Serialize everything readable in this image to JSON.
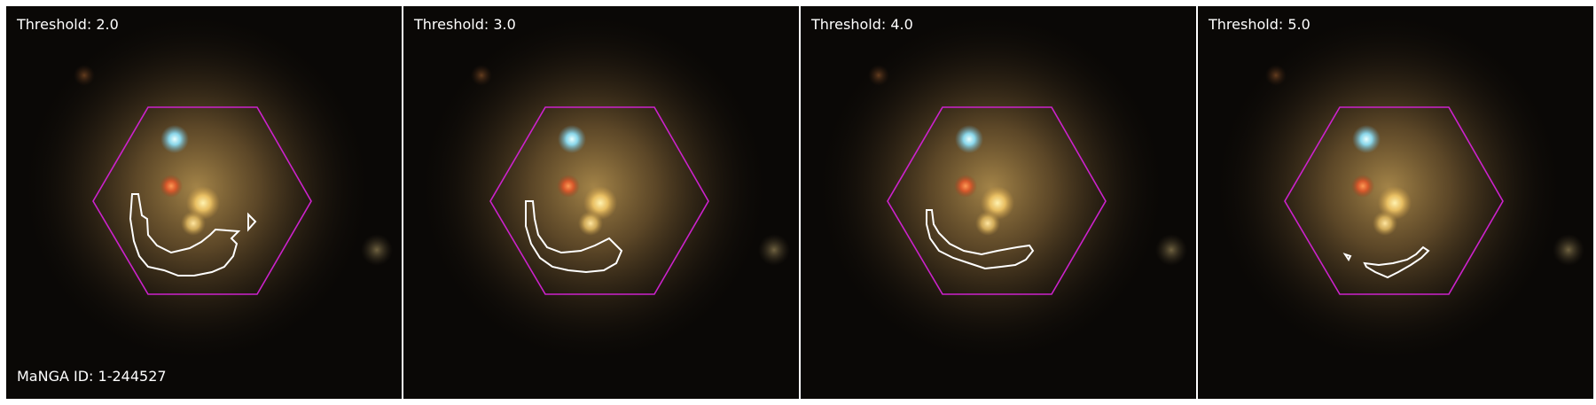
{
  "figure": {
    "manga_label": "MaNGA ID: 1-244527",
    "panels": [
      {
        "threshold_label": "Threshold: 2.0"
      },
      {
        "threshold_label": "Threshold: 3.0"
      },
      {
        "threshold_label": "Threshold: 4.0"
      },
      {
        "threshold_label": "Threshold: 5.0"
      }
    ]
  },
  "colors": {
    "hexagon": "#cc22cc",
    "contour": "#ffffff",
    "label_text": "#ffffff",
    "separator": "#ffffff"
  }
}
